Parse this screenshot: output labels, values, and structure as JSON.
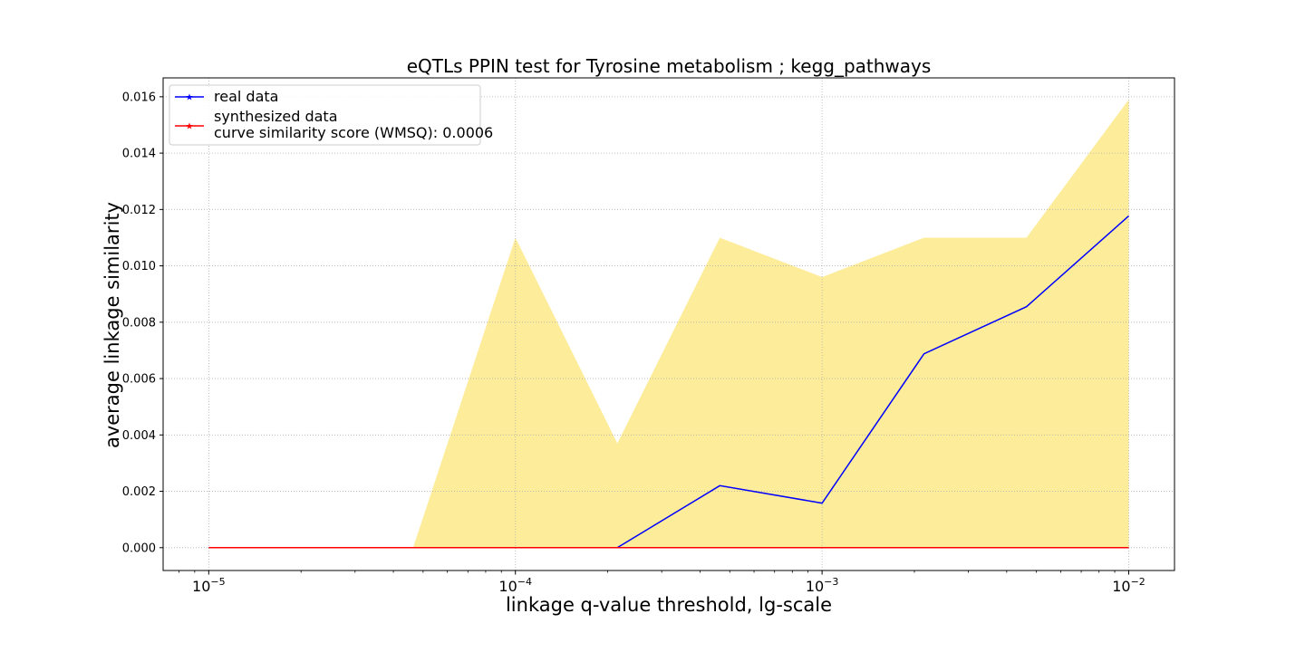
{
  "chart_data": {
    "type": "line",
    "title": "eQTLs PPIN test for Tyrosine metabolism ; kegg_pathways",
    "xlabel": "linkage q-value threshold, lg-scale",
    "ylabel": "average linkage similarity",
    "x_scale": "log",
    "xlim": [
      7.1e-06,
      0.0141
    ],
    "ylim": [
      -0.00081,
      0.01667
    ],
    "grid": true,
    "x_ticks": [
      {
        "value": 1e-05,
        "base": "10",
        "exp": "−5"
      },
      {
        "value": 0.0001,
        "base": "10",
        "exp": "−4"
      },
      {
        "value": 0.001,
        "base": "10",
        "exp": "−3"
      },
      {
        "value": 0.01,
        "base": "10",
        "exp": "−2"
      }
    ],
    "y_ticks": [
      "0.000",
      "0.002",
      "0.004",
      "0.006",
      "0.008",
      "0.010",
      "0.012",
      "0.014",
      "0.016"
    ],
    "y_tick_values": [
      0,
      0.002,
      0.004,
      0.006,
      0.008,
      0.01,
      0.012,
      0.014,
      0.016
    ],
    "x": [
      1e-05,
      2.15e-05,
      4.64e-05,
      0.0001,
      0.000215,
      0.000464,
      0.001,
      0.00215,
      0.00464,
      0.01
    ],
    "band": {
      "lower": [
        0,
        0,
        0,
        0,
        0,
        0,
        0,
        0,
        0,
        0
      ],
      "upper": [
        0,
        0,
        0,
        0.011,
        0.0037,
        0.011,
        0.0096,
        0.011,
        0.011,
        0.0159
      ],
      "color": "#fde987"
    },
    "series": [
      {
        "name": "real data",
        "color": "#0000ff",
        "values": [
          0,
          0,
          0,
          0,
          0,
          0.0022,
          0.00158,
          0.00688,
          0.00855,
          0.01177
        ]
      },
      {
        "name": "synthesized data\ncurve similarity score (WMSQ): 0.0006",
        "color": "#ff0000",
        "values": [
          0,
          0,
          0,
          0,
          0,
          0,
          0,
          0,
          0,
          0
        ]
      }
    ],
    "legend": {
      "position": "upper-left",
      "entries": [
        {
          "color": "#0000ff",
          "lines": [
            "real data"
          ]
        },
        {
          "color": "#ff0000",
          "lines": [
            "synthesized data",
            "curve similarity score (WMSQ): 0.0006"
          ]
        }
      ]
    }
  }
}
